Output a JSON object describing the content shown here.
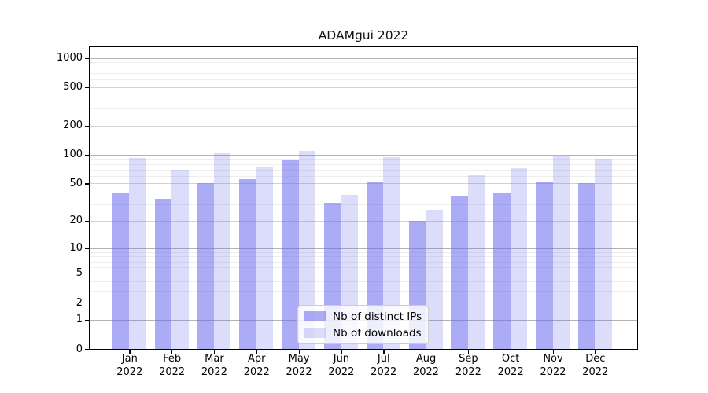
{
  "title": "ADAMgui 2022",
  "chart_data": {
    "type": "bar",
    "title": "ADAMgui 2022",
    "categories": [
      {
        "month": "Jan",
        "year": "2022"
      },
      {
        "month": "Feb",
        "year": "2022"
      },
      {
        "month": "Mar",
        "year": "2022"
      },
      {
        "month": "Apr",
        "year": "2022"
      },
      {
        "month": "May",
        "year": "2022"
      },
      {
        "month": "Jun",
        "year": "2022"
      },
      {
        "month": "Jul",
        "year": "2022"
      },
      {
        "month": "Aug",
        "year": "2022"
      },
      {
        "month": "Sep",
        "year": "2022"
      },
      {
        "month": "Oct",
        "year": "2022"
      },
      {
        "month": "Nov",
        "year": "2022"
      },
      {
        "month": "Dec",
        "year": "2022"
      }
    ],
    "series": [
      {
        "name": "Nb of distinct IPs",
        "color": "rgba(102,102,238,0.55)",
        "values": [
          40,
          34,
          50,
          55,
          89,
          31,
          51,
          20,
          36,
          40,
          52,
          50
        ]
      },
      {
        "name": "Nb of downloads",
        "color": "rgba(102,102,238,0.23)",
        "values": [
          93,
          70,
          103,
          74,
          110,
          38,
          94,
          26,
          61,
          72,
          95,
          91
        ]
      }
    ],
    "yscale": "log1p",
    "ylim": [
      0,
      1330
    ],
    "yticks": [
      0,
      1,
      2,
      5,
      10,
      20,
      50,
      100,
      200,
      500,
      1000
    ],
    "xlabel": "",
    "ylabel": "",
    "grid": true,
    "legend_position": "lower-center-inside",
    "gridline_colors": {
      "power_of_ten": "#b3b3b3",
      "labeled": "#d2d2d2",
      "minor": "#eeeeee"
    }
  }
}
